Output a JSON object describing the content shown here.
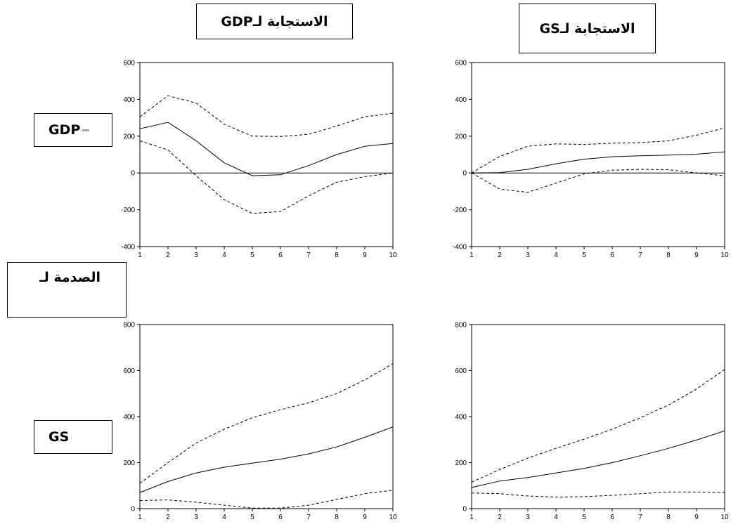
{
  "labels": {
    "header_gdp": "GDPالاستجابة لـ",
    "header_gs": "GSالاستجابة لـ",
    "row_gdp": "GDP",
    "row_gs": "GS",
    "shock": "الصدمة لـ"
  },
  "chart_data": [
    {
      "type": "line",
      "x": [
        1,
        2,
        3,
        4,
        5,
        6,
        7,
        8,
        9,
        10
      ],
      "ylim": [
        -400,
        600
      ],
      "yticks": [
        -400,
        -200,
        0,
        200,
        400,
        600
      ],
      "series": [
        {
          "values": [
            240,
            275,
            175,
            55,
            -15,
            -10,
            40,
            100,
            145,
            160
          ],
          "style": "solid"
        },
        {
          "values": [
            305,
            420,
            380,
            265,
            200,
            198,
            210,
            255,
            305,
            325
          ],
          "style": "dashed"
        },
        {
          "values": [
            175,
            125,
            -15,
            -145,
            -220,
            -210,
            -125,
            -50,
            -20,
            0
          ],
          "style": "dashed"
        }
      ]
    },
    {
      "type": "line",
      "x": [
        1,
        2,
        3,
        4,
        5,
        6,
        7,
        8,
        9,
        10
      ],
      "ylim": [
        -400,
        600
      ],
      "yticks": [
        -400,
        -200,
        0,
        200,
        400,
        600
      ],
      "series": [
        {
          "values": [
            0,
            2,
            20,
            50,
            75,
            88,
            93,
            97,
            102,
            115
          ],
          "style": "solid"
        },
        {
          "values": [
            0,
            90,
            145,
            158,
            155,
            162,
            165,
            175,
            205,
            245
          ],
          "style": "dashed"
        },
        {
          "values": [
            0,
            -88,
            -105,
            -55,
            -5,
            15,
            20,
            18,
            0,
            -15
          ],
          "style": "dashed"
        }
      ]
    },
    {
      "type": "line",
      "x": [
        1,
        2,
        3,
        4,
        5,
        6,
        7,
        8,
        9,
        10
      ],
      "ylim": [
        0,
        800
      ],
      "yticks": [
        0,
        200,
        400,
        600,
        800
      ],
      "series": [
        {
          "values": [
            70,
            118,
            155,
            180,
            198,
            215,
            238,
            268,
            310,
            355
          ],
          "style": "solid"
        },
        {
          "values": [
            110,
            200,
            285,
            345,
            395,
            430,
            460,
            500,
            560,
            630
          ],
          "style": "dashed"
        },
        {
          "values": [
            35,
            38,
            28,
            15,
            2,
            2,
            15,
            40,
            65,
            80
          ],
          "style": "dashed"
        }
      ]
    },
    {
      "type": "line",
      "x": [
        1,
        2,
        3,
        4,
        5,
        6,
        7,
        8,
        9,
        10
      ],
      "ylim": [
        0,
        800
      ],
      "yticks": [
        0,
        200,
        400,
        600,
        800
      ],
      "series": [
        {
          "values": [
            92,
            120,
            135,
            155,
            175,
            200,
            230,
            262,
            298,
            338
          ],
          "style": "solid"
        },
        {
          "values": [
            115,
            170,
            220,
            262,
            302,
            345,
            395,
            450,
            520,
            605
          ],
          "style": "dashed"
        },
        {
          "values": [
            68,
            65,
            55,
            50,
            52,
            58,
            65,
            72,
            72,
            70
          ],
          "style": "dashed"
        }
      ]
    }
  ]
}
